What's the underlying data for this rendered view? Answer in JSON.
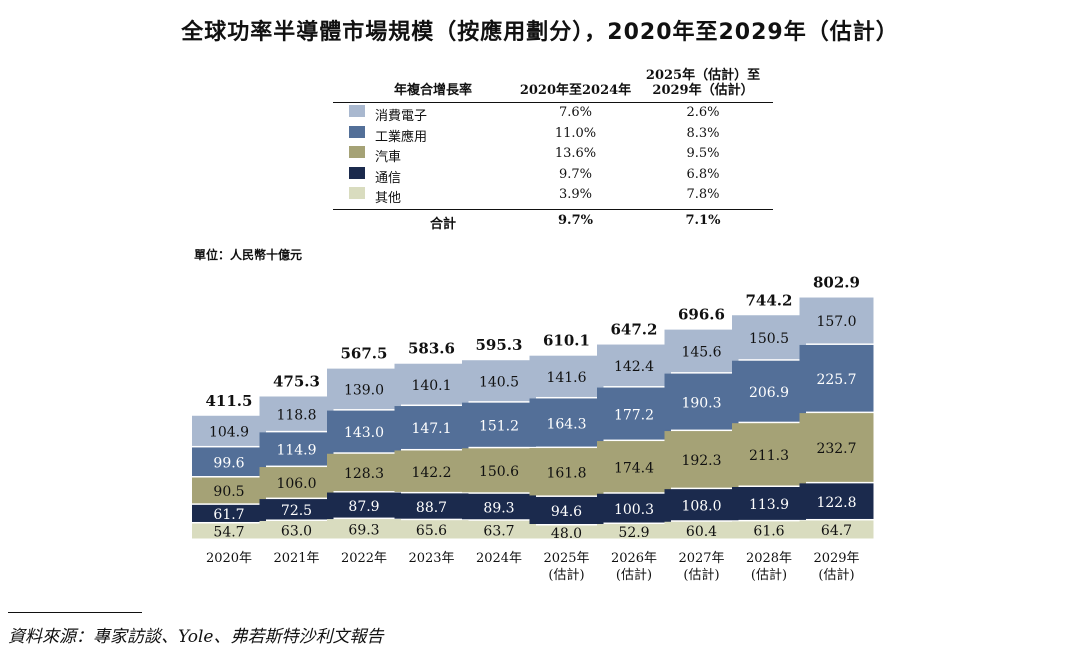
{
  "title": "全球功率半導體市場規模（按應用劃分），2020年至2029年（估計）",
  "cagr_table": {
    "headers": [
      "年複合增長率",
      "2020年至2024年",
      "2025年（估計）至",
      "2029年（估計）"
    ],
    "rows": [
      {
        "label": "消費電子",
        "v1": "7.6%",
        "v2": "2.6%",
        "color": "#a9b8cf"
      },
      {
        "label": "工業應用",
        "v1": "11.0%",
        "v2": "8.3%",
        "color": "#536f98"
      },
      {
        "label": "汽車",
        "v1": "13.6%",
        "v2": "9.5%",
        "color": "#a5a276"
      },
      {
        "label": "通信",
        "v1": "9.7%",
        "v2": "6.8%",
        "color": "#1b2a4d"
      },
      {
        "label": "其他",
        "v1": "3.9%",
        "v2": "7.8%",
        "color": "#d9dcbf"
      }
    ],
    "total": {
      "label": "合計",
      "v1": "9.7%",
      "v2": "7.1%"
    }
  },
  "unit": "單位：人民幣十億元",
  "chart_data": {
    "type": "bar",
    "stacked": true,
    "categories": [
      "2020年",
      "2021年",
      "2022年",
      "2023年",
      "2024年",
      "2025年（估計）",
      "2026年（估計）",
      "2027年（估計）",
      "2028年（估計）",
      "2029年（估計）"
    ],
    "category_lines": [
      [
        "2020年"
      ],
      [
        "2021年"
      ],
      [
        "2022年"
      ],
      [
        "2023年"
      ],
      [
        "2024年"
      ],
      [
        "2025年",
        "(估計)"
      ],
      [
        "2026年",
        "(估計)"
      ],
      [
        "2027年",
        "(估計)"
      ],
      [
        "2028年",
        "(估計)"
      ],
      [
        "2029年",
        "(估計)"
      ]
    ],
    "series": [
      {
        "name": "其他",
        "color": "#d9dcbf",
        "label_color": "#111111",
        "values": [
          54.7,
          63.0,
          69.3,
          65.6,
          63.7,
          48.0,
          52.9,
          60.4,
          61.6,
          64.7
        ]
      },
      {
        "name": "通信",
        "color": "#1b2a4d",
        "label_color": "#ffffff",
        "values": [
          61.7,
          72.5,
          87.9,
          88.7,
          89.3,
          94.6,
          100.3,
          108.0,
          113.9,
          122.8
        ]
      },
      {
        "name": "汽車",
        "color": "#a5a276",
        "label_color": "#111111",
        "values": [
          90.5,
          106.0,
          128.3,
          142.2,
          150.6,
          161.8,
          174.4,
          192.3,
          211.3,
          232.7
        ]
      },
      {
        "name": "工業應用",
        "color": "#536f98",
        "label_color": "#ffffff",
        "values": [
          99.6,
          114.9,
          143.0,
          147.1,
          151.2,
          164.3,
          177.2,
          190.3,
          206.9,
          225.7
        ]
      },
      {
        "name": "消費電子",
        "color": "#a9b8cf",
        "label_color": "#111111",
        "values": [
          104.9,
          118.8,
          139.0,
          140.1,
          140.5,
          141.6,
          142.4,
          145.6,
          150.5,
          157.0
        ]
      }
    ],
    "totals": [
      411.5,
      475.3,
      567.5,
      583.6,
      595.3,
      610.1,
      647.2,
      696.6,
      744.2,
      802.9
    ]
  },
  "source": "資料來源：專家訪談、Yole、弗若斯特沙利文報告"
}
